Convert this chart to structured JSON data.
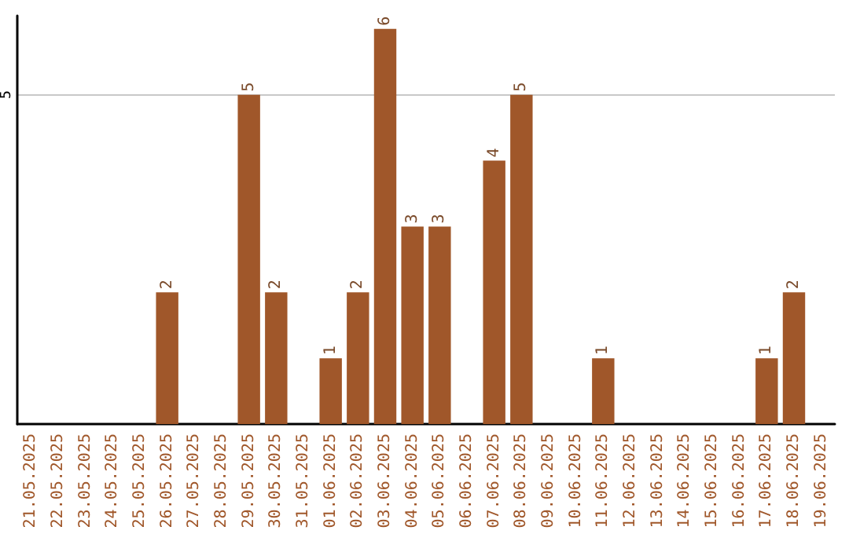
{
  "chart_data": {
    "type": "bar",
    "categories": [
      "21.05.2025",
      "22.05.2025",
      "23.05.2025",
      "24.05.2025",
      "25.05.2025",
      "26.05.2025",
      "27.05.2025",
      "28.05.2025",
      "29.05.2025",
      "30.05.2025",
      "31.05.2025",
      "01.06.2025",
      "02.06.2025",
      "03.06.2025",
      "04.06.2025",
      "05.06.2025",
      "06.06.2025",
      "07.06.2025",
      "08.06.2025",
      "09.06.2025",
      "10.06.2025",
      "11.06.2025",
      "12.06.2025",
      "13.06.2025",
      "14.06.2025",
      "15.06.2025",
      "16.06.2025",
      "17.06.2025",
      "18.06.2025",
      "19.06.2025"
    ],
    "values": [
      0,
      0,
      0,
      0,
      0,
      2,
      0,
      0,
      5,
      2,
      0,
      1,
      2,
      6,
      3,
      3,
      0,
      4,
      5,
      0,
      0,
      1,
      0,
      0,
      0,
      0,
      0,
      1,
      2,
      0
    ],
    "value_labels": [
      null,
      null,
      null,
      null,
      null,
      "2",
      null,
      null,
      "5",
      "2",
      null,
      "1",
      "2",
      "6",
      "3",
      "3",
      null,
      "4",
      "5",
      null,
      null,
      "1",
      null,
      null,
      null,
      null,
      null,
      "1",
      "2",
      null
    ],
    "color": "#a0572a",
    "ylim": [
      0,
      6.2
    ],
    "yticks": [
      5
    ],
    "grid": "y"
  }
}
